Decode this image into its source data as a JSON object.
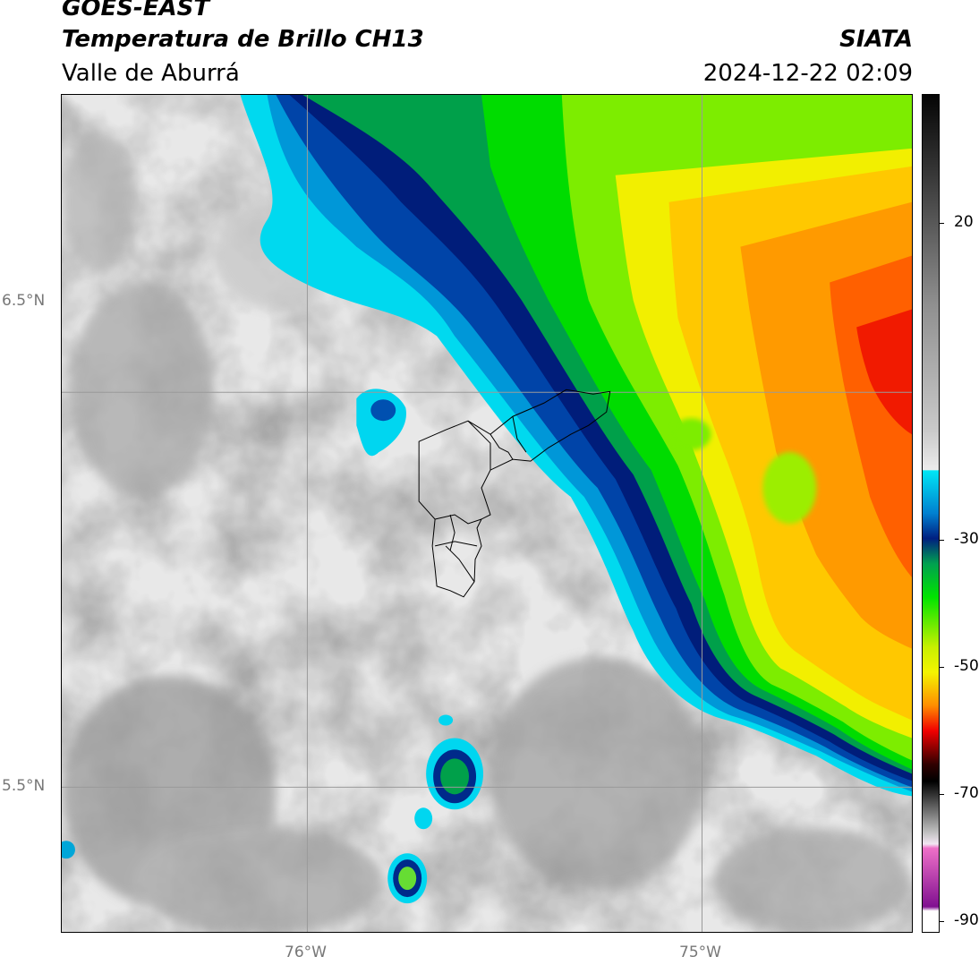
{
  "header": {
    "title_line1": "GOES-EAST",
    "title_line2": "Temperatura de Brillo CH13",
    "subtitle": "Valle de Aburrá",
    "brand": "SIATA",
    "timestamp": "2024-12-22 02:09"
  },
  "map": {
    "lat_labels": [
      "6.5°N",
      "5.5°N"
    ],
    "lon_labels": [
      "76°W",
      "75°W"
    ],
    "gridline_color": "#9a9a9a",
    "boundary_color": "#000000"
  },
  "colorbar": {
    "tick_labels": [
      "20",
      "-30",
      "-50",
      "-70",
      "-90"
    ],
    "palette": {
      "warm_clear": "#e6e6e6",
      "low_cloud_gray": "#9e9e9e",
      "cyan": "#00d6f0",
      "dark_blue": "#002a8a",
      "green": "#00e400",
      "yellow": "#f4f400",
      "orange": "#ff8c00",
      "red": "#f00000",
      "black": "#000000",
      "magenta": "#c040c0"
    }
  }
}
